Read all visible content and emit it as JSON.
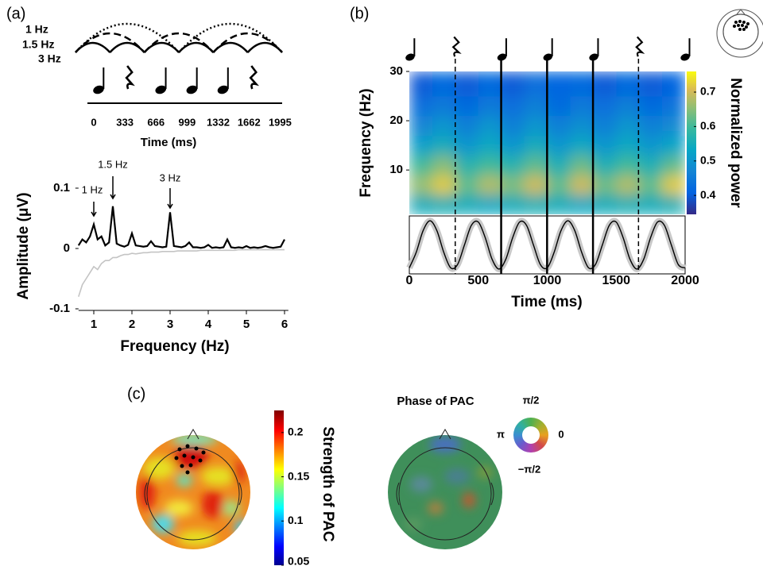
{
  "chart_data": [
    {
      "type": "rhythm",
      "panel": "(a)",
      "curves": [
        {
          "name": "1 Hz",
          "freq": 1,
          "dash": "dotted"
        },
        {
          "name": "1.5 Hz",
          "freq": 1.5,
          "dash": "dashed"
        },
        {
          "name": "3 Hz",
          "freq": 3,
          "dash": "solid"
        }
      ],
      "events": [
        {
          "t": 0,
          "kind": "note"
        },
        {
          "t": 333,
          "kind": "rest"
        },
        {
          "t": 666,
          "kind": "note"
        },
        {
          "t": 999,
          "kind": "note"
        },
        {
          "t": 1332,
          "kind": "note"
        },
        {
          "t": 1662,
          "kind": "rest"
        }
      ],
      "xticks": [
        0,
        333,
        666,
        999,
        1332,
        1662,
        1995
      ],
      "xlabel": "Time (ms)"
    },
    {
      "type": "line",
      "xlabel": "Frequency (Hz)",
      "ylabel": "Amplitude (μV)",
      "xlim": [
        0.6,
        6.1
      ],
      "ylim": [
        -0.1,
        0.12
      ],
      "xticks": [
        1,
        2,
        3,
        4,
        5,
        6
      ],
      "yticks": [
        -0.1,
        0,
        0.1
      ],
      "annotations": [
        {
          "text": "1 Hz",
          "x": 1
        },
        {
          "text": "1.5 Hz",
          "x": 1.5
        },
        {
          "text": "3 Hz",
          "x": 3
        }
      ],
      "x": [
        0.6,
        0.7,
        0.8,
        0.9,
        1,
        1.1,
        1.2,
        1.3,
        1.4,
        1.5,
        1.6,
        1.7,
        1.8,
        1.9,
        2,
        2.1,
        2.2,
        2.3,
        2.4,
        2.5,
        2.6,
        2.7,
        2.8,
        2.9,
        3,
        3.1,
        3.2,
        3.3,
        3.4,
        3.5,
        3.6,
        3.7,
        3.8,
        3.9,
        4,
        4.1,
        4.2,
        4.3,
        4.4,
        4.5,
        4.6,
        4.7,
        4.8,
        4.9,
        5,
        5.1,
        5.2,
        5.3,
        5.4,
        5.5,
        5.6,
        5.7,
        5.8,
        5.9,
        6
      ],
      "series": [
        {
          "color": "#c4c4c4",
          "values": [
            -0.08,
            -0.06,
            -0.05,
            -0.04,
            -0.03,
            -0.035,
            -0.025,
            -0.02,
            -0.02,
            -0.015,
            -0.015,
            -0.012,
            -0.01,
            -0.01,
            -0.008,
            -0.009,
            -0.008,
            -0.007,
            -0.007,
            -0.006,
            -0.006,
            -0.006,
            -0.005,
            -0.005,
            -0.005,
            -0.005,
            -0.004,
            -0.004,
            -0.004,
            -0.004,
            -0.004,
            -0.004,
            -0.003,
            -0.003,
            -0.003,
            -0.003,
            -0.003,
            -0.003,
            -0.003,
            -0.003,
            -0.003,
            -0.003,
            -0.002,
            -0.002,
            -0.002,
            -0.002,
            -0.002,
            -0.002,
            -0.002,
            -0.002,
            -0.002,
            -0.002,
            -0.002,
            -0.002,
            -0.002
          ]
        },
        {
          "color": "#000000",
          "values": [
            0.005,
            0.015,
            0.01,
            0.02,
            0.04,
            0.015,
            0.02,
            0.005,
            0.01,
            0.07,
            0.008,
            0.005,
            0.003,
            0.006,
            0.025,
            0.005,
            0.004,
            0.003,
            0.004,
            0.012,
            0.004,
            0.003,
            0.002,
            0.003,
            0.06,
            0.004,
            0.003,
            0.002,
            0.004,
            0.01,
            0.002,
            0.002,
            0.001,
            0.002,
            0.006,
            0.001,
            0.002,
            0.001,
            0.002,
            0.015,
            0.002,
            0.001,
            0.002,
            0.001,
            0.004,
            0.001,
            0.002,
            0.001,
            0.002,
            0.004,
            0.002,
            0.001,
            0.002,
            0.003,
            0.015
          ]
        }
      ]
    },
    {
      "type": "heatmap",
      "panel": "(b)",
      "xlabel": "Time (ms)",
      "ylabel": "Frequency (Hz)",
      "colorbar_label": "Normalized power",
      "xlim": [
        0,
        2000
      ],
      "ylim": [
        1,
        30
      ],
      "xticks": [
        0,
        500,
        1000,
        1500,
        2000
      ],
      "yticks": [
        10,
        20,
        30
      ],
      "clim": [
        0.345,
        0.76
      ],
      "cticks": [
        0.4,
        0.5,
        0.6,
        0.7
      ],
      "xbins": [
        0,
        167,
        333,
        500,
        667,
        833,
        1000,
        1167,
        1333,
        1500,
        1667,
        1833,
        2000
      ],
      "ybins": [
        1,
        5,
        9,
        13,
        17,
        21,
        25,
        30
      ],
      "values": [
        [
          0.55,
          0.56,
          0.55,
          0.54,
          0.55,
          0.56,
          0.55,
          0.54,
          0.55,
          0.56,
          0.55,
          0.56
        ],
        [
          0.66,
          0.72,
          0.62,
          0.68,
          0.64,
          0.7,
          0.62,
          0.7,
          0.63,
          0.68,
          0.62,
          0.72
        ],
        [
          0.6,
          0.65,
          0.57,
          0.6,
          0.57,
          0.62,
          0.56,
          0.63,
          0.56,
          0.6,
          0.56,
          0.62
        ],
        [
          0.52,
          0.55,
          0.5,
          0.54,
          0.5,
          0.55,
          0.5,
          0.54,
          0.5,
          0.54,
          0.5,
          0.53
        ],
        [
          0.47,
          0.5,
          0.46,
          0.5,
          0.46,
          0.5,
          0.46,
          0.49,
          0.46,
          0.5,
          0.46,
          0.48
        ],
        [
          0.43,
          0.45,
          0.42,
          0.45,
          0.43,
          0.46,
          0.42,
          0.45,
          0.43,
          0.46,
          0.42,
          0.44
        ],
        [
          0.4,
          0.42,
          0.4,
          0.42,
          0.4,
          0.43,
          0.41,
          0.42,
          0.4,
          0.42,
          0.4,
          0.41
        ]
      ],
      "events": [
        {
          "t": 0,
          "kind": "note"
        },
        {
          "t": 333,
          "kind": "rest"
        },
        {
          "t": 666,
          "kind": "note"
        },
        {
          "t": 999,
          "kind": "note"
        },
        {
          "t": 1332,
          "kind": "note"
        },
        {
          "t": 1662,
          "kind": "rest"
        },
        {
          "t": 1995,
          "kind": "note"
        }
      ],
      "markers": [
        {
          "t": 333,
          "style": "dashed"
        },
        {
          "t": 666,
          "style": "solid"
        },
        {
          "t": 999,
          "style": "solid"
        },
        {
          "t": 1332,
          "style": "solid"
        },
        {
          "t": 1662,
          "style": "dashed"
        }
      ],
      "oscillation": {
        "ylim": [
          -1.2,
          1.2
        ],
        "x": [
          0,
          50,
          100,
          150,
          200,
          250,
          300,
          350,
          400,
          450,
          500,
          550,
          600,
          650,
          700,
          750,
          800,
          850,
          900,
          950,
          1000,
          1050,
          1100,
          1150,
          1200,
          1250,
          1300,
          1350,
          1400,
          1450,
          1500,
          1550,
          1600,
          1650,
          1700,
          1750,
          1800,
          1850,
          1900,
          1950,
          2000
        ],
        "values": [
          -0.95,
          -0.31,
          0.59,
          1,
          0.59,
          -0.31,
          -0.95,
          -0.81,
          0,
          0.81,
          0.95,
          0.31,
          -0.59,
          -1,
          -0.59,
          0.31,
          0.95,
          0.81,
          0,
          -0.81,
          -0.95,
          -0.31,
          0.59,
          1,
          0.59,
          -0.31,
          -0.95,
          -0.81,
          0,
          0.81,
          0.95,
          0.31,
          -0.59,
          -1,
          -0.59,
          0.31,
          0.95,
          0.81,
          0,
          -0.81,
          -0.95
        ]
      }
    },
    {
      "type": "topomap",
      "panel": "(c)",
      "colorbar_label": "Strength of PAC",
      "clim": [
        0.05,
        0.225
      ],
      "cticks": [
        0.05,
        0.1,
        0.15,
        0.2
      ]
    },
    {
      "type": "phasemap",
      "title": "Phase of PAC",
      "wheel_labels": {
        "top": "π/2",
        "left": "π",
        "right": "0",
        "bottom": "−π/2"
      }
    }
  ]
}
